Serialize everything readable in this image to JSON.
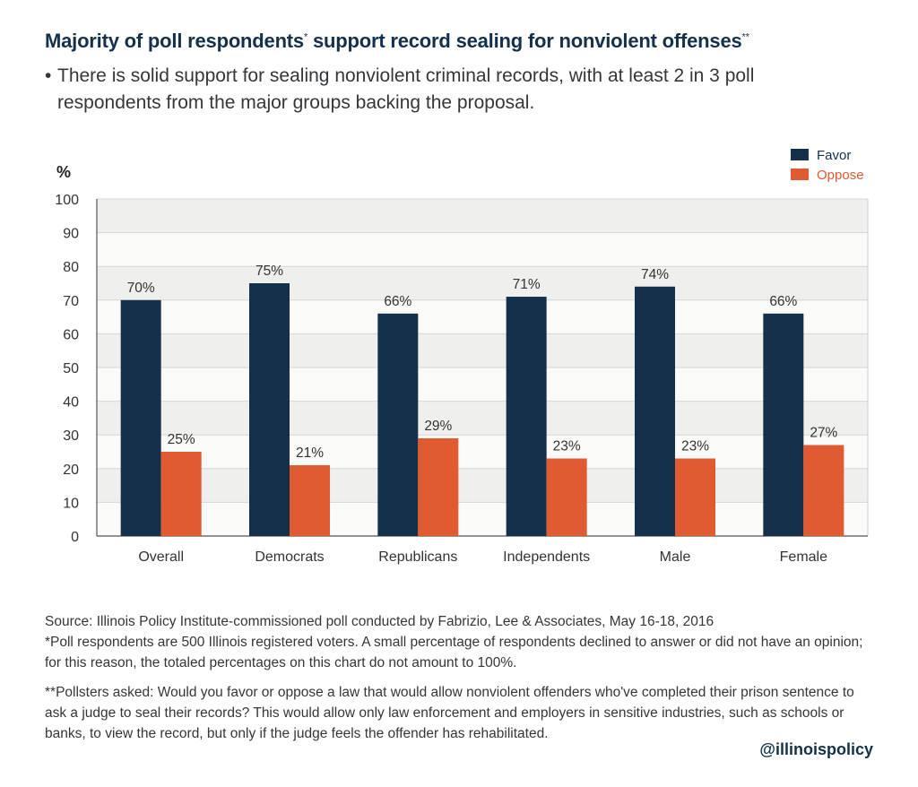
{
  "header": {
    "title": "Majority of poll respondents",
    "title_mark1": "*",
    "title_mid": " support record sealing for nonviolent offenses",
    "title_mark2": "**",
    "bullet": "There is solid support for sealing nonviolent criminal records, with at least 2 in 3 poll respondents from the major groups backing the proposal."
  },
  "chart_data": {
    "type": "bar",
    "title": "",
    "ylabel": "%",
    "xlabel": "",
    "ylim": [
      0,
      100
    ],
    "yticks": [
      0,
      10,
      20,
      30,
      40,
      50,
      60,
      70,
      80,
      90,
      100
    ],
    "grid": true,
    "legend_position": "top-right",
    "categories": [
      "Overall",
      "Democrats",
      "Republicans",
      "Independents",
      "Male",
      "Female"
    ],
    "series": [
      {
        "name": "Favor",
        "color": "#14304a",
        "values": [
          70,
          75,
          66,
          71,
          74,
          66
        ],
        "labels": [
          "70%",
          "75%",
          "66%",
          "71%",
          "74%",
          "66%"
        ]
      },
      {
        "name": "Oppose",
        "color": "#e05a32",
        "values": [
          25,
          21,
          29,
          23,
          23,
          27
        ],
        "labels": [
          "25%",
          "21%",
          "29%",
          "23%",
          "23%",
          "27%"
        ]
      }
    ]
  },
  "footnotes": {
    "source": "Source: Illinois Policy Institute-commissioned poll conducted by Fabrizio, Lee & Associates, May 16-18, 2016",
    "note1": "*Poll respondents are 500 Illinois registered voters. A small percentage of respondents declined to answer or did not have an opinion; for this reason, the totaled percentages on this chart do not amount to 100%.",
    "note2": "**Pollsters asked: Would you favor or oppose a law that would allow nonviolent offenders who've completed their prison sentence to ask a judge to seal their records? This would allow only law enforcement and employers in sensitive industries, such as schools or banks, to view the record, but only if the judge feels the offender has rehabilitated."
  },
  "brand": "@illinoispolicy"
}
